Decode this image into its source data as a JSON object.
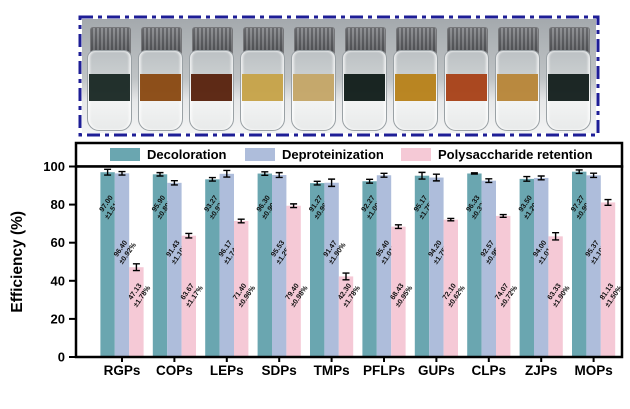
{
  "photo": {
    "border_color": "#1e1e96",
    "cap_color": "#a0a1a4",
    "vials": [
      {
        "liquid": "#1c2a26"
      },
      {
        "liquid": "#8a4a14"
      },
      {
        "liquid": "#5a2410"
      },
      {
        "liquid": "#c6a349"
      },
      {
        "liquid": "#c4a668"
      },
      {
        "liquid": "#131f1c"
      },
      {
        "liquid": "#b8821c"
      },
      {
        "liquid": "#a8431a"
      },
      {
        "liquid": "#b8863a"
      },
      {
        "liquid": "#16211f"
      }
    ]
  },
  "chart_data": {
    "type": "bar",
    "title": "",
    "xlabel": "",
    "ylabel": "Efficiency (%)",
    "ylim": [
      0,
      100
    ],
    "yticks": [
      0,
      20,
      40,
      60,
      80,
      100
    ],
    "grid": false,
    "legend_position": "top",
    "bar_label_format": "VALUE±ERROR%",
    "categories": [
      "RGPs",
      "COPs",
      "LEPs",
      "SDPs",
      "TMPs",
      "PFLPs",
      "GUPs",
      "CLPs",
      "ZJPs",
      "MOPs"
    ],
    "series": [
      {
        "name": "Decoloration",
        "color": "#6aa6b0",
        "values": [
          97.0,
          95.9,
          93.27,
          96.3,
          91.27,
          92.27,
          95.17,
          96.33,
          93.5,
          97.27
        ],
        "errors": [
          1.51,
          0.89,
          0.93,
          0.9,
          0.96,
          1.0,
          1.75,
          0.32,
          1.2,
          0.9
        ]
      },
      {
        "name": "Deproteinization",
        "color": "#aebddb",
        "values": [
          96.4,
          91.43,
          96.17,
          95.53,
          91.47,
          95.4,
          94.2,
          92.57,
          94.0,
          95.37
        ],
        "errors": [
          0.92,
          1.1,
          1.74,
          1.25,
          1.9,
          1.01,
          1.75,
          0.95,
          1.01,
          1.1
        ]
      },
      {
        "name": "Polysaccharide retention",
        "color": "#f5c9d6",
        "values": [
          47.13,
          63.67,
          71.4,
          79.4,
          42.3,
          68.43,
          72.1,
          74.07,
          63.33,
          81.13
        ],
        "errors": [
          1.78,
          1.17,
          0.96,
          0.98,
          1.78,
          0.95,
          0.62,
          0.72,
          1.9,
          1.5
        ]
      }
    ]
  }
}
